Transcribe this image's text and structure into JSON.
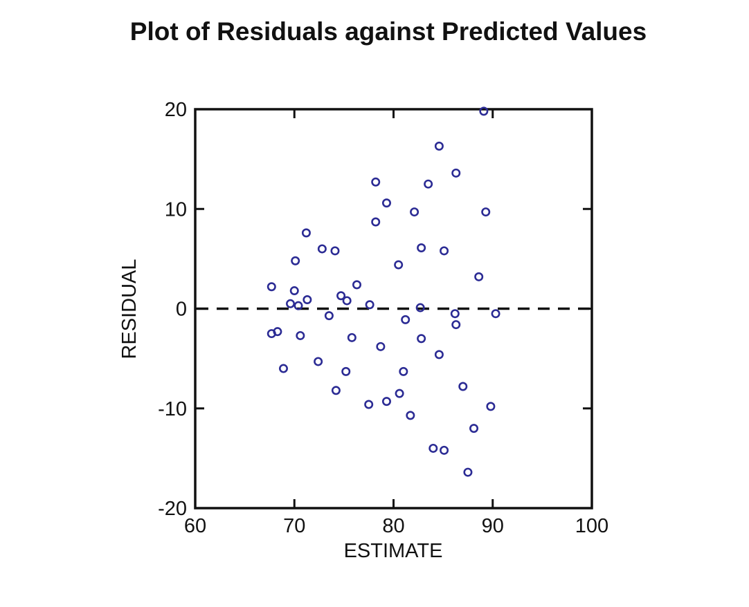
{
  "chart_data": {
    "type": "scatter",
    "title": "Plot of Residuals against Predicted Values",
    "xlabel": "ESTIMATE",
    "ylabel": "RESIDUAL",
    "xlim": [
      60,
      100
    ],
    "ylim": [
      -20,
      20
    ],
    "x_ticks": [
      60,
      70,
      80,
      90,
      100
    ],
    "y_ticks": [
      -20,
      -10,
      0,
      10,
      20
    ],
    "grid": false,
    "legend": "none",
    "reference_line_y": 0,
    "reference_line_style": "dashed",
    "marker": "open-circle",
    "marker_color": "#2b2b94",
    "axis_color": "#111111",
    "series_name": "residuals",
    "points": [
      [
        89.1,
        19.8
      ],
      [
        84.6,
        16.3
      ],
      [
        86.3,
        13.6
      ],
      [
        78.2,
        12.7
      ],
      [
        83.5,
        12.5
      ],
      [
        79.3,
        10.6
      ],
      [
        82.1,
        9.7
      ],
      [
        89.3,
        9.7
      ],
      [
        78.2,
        8.7
      ],
      [
        71.2,
        7.6
      ],
      [
        82.8,
        6.1
      ],
      [
        72.8,
        6.0
      ],
      [
        74.1,
        5.8
      ],
      [
        85.1,
        5.8
      ],
      [
        70.1,
        4.8
      ],
      [
        80.5,
        4.4
      ],
      [
        88.6,
        3.2
      ],
      [
        76.3,
        2.4
      ],
      [
        67.7,
        2.2
      ],
      [
        70.0,
        1.8
      ],
      [
        74.7,
        1.3
      ],
      [
        71.3,
        0.9
      ],
      [
        75.3,
        0.8
      ],
      [
        69.6,
        0.5
      ],
      [
        77.6,
        0.4
      ],
      [
        70.4,
        0.3
      ],
      [
        82.7,
        0.1
      ],
      [
        86.2,
        -0.5
      ],
      [
        90.3,
        -0.5
      ],
      [
        73.5,
        -0.7
      ],
      [
        81.2,
        -1.1
      ],
      [
        86.3,
        -1.6
      ],
      [
        68.3,
        -2.3
      ],
      [
        67.7,
        -2.5
      ],
      [
        70.6,
        -2.7
      ],
      [
        75.8,
        -2.9
      ],
      [
        82.8,
        -3.0
      ],
      [
        78.7,
        -3.8
      ],
      [
        84.6,
        -4.6
      ],
      [
        72.4,
        -5.3
      ],
      [
        68.9,
        -6.0
      ],
      [
        75.2,
        -6.3
      ],
      [
        81.0,
        -6.3
      ],
      [
        87.0,
        -7.8
      ],
      [
        74.2,
        -8.2
      ],
      [
        80.6,
        -8.5
      ],
      [
        79.3,
        -9.3
      ],
      [
        77.5,
        -9.6
      ],
      [
        89.8,
        -9.8
      ],
      [
        81.7,
        -10.7
      ],
      [
        88.1,
        -12.0
      ],
      [
        84.0,
        -14.0
      ],
      [
        85.1,
        -14.2
      ],
      [
        87.5,
        -16.4
      ]
    ]
  }
}
